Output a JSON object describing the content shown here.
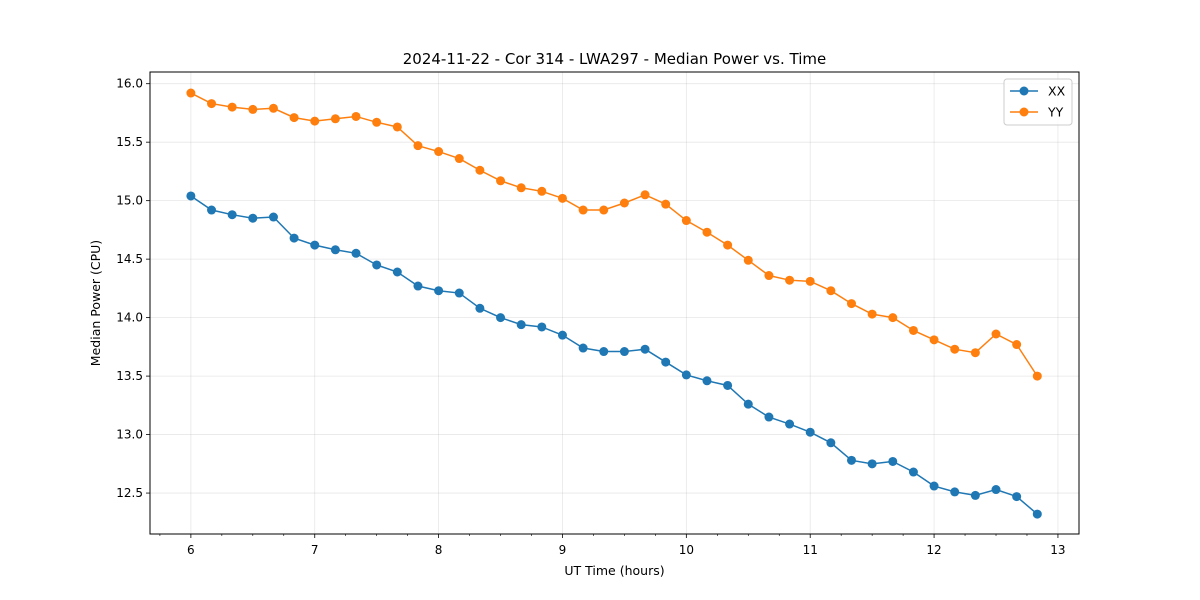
{
  "chart_data": {
    "type": "line",
    "title": "2024-11-22 - Cor 314 - LWA297 - Median Power vs. Time",
    "xlabel": "UT Time (hours)",
    "ylabel": "Median Power (CPU)",
    "xlim": [
      5.67,
      13.17
    ],
    "ylim": [
      12.15,
      16.1
    ],
    "xticks": [
      6,
      7,
      8,
      9,
      10,
      11,
      12,
      13
    ],
    "yticks": [
      12.5,
      13.0,
      13.5,
      14.0,
      14.5,
      15.0,
      15.5,
      16.0
    ],
    "xtick_labels": [
      "6",
      "7",
      "8",
      "9",
      "10",
      "11",
      "12",
      "13"
    ],
    "ytick_labels": [
      "12.5",
      "13.0",
      "13.5",
      "14.0",
      "14.5",
      "15.0",
      "15.5",
      "16.0"
    ],
    "grid": true,
    "legend_position": "top-right",
    "x": [
      6.0,
      6.1667,
      6.3333,
      6.5,
      6.6667,
      6.8333,
      7.0,
      7.1667,
      7.3333,
      7.5,
      7.6667,
      7.8333,
      8.0,
      8.1667,
      8.3333,
      8.5,
      8.6667,
      8.8333,
      9.0,
      9.1667,
      9.3333,
      9.5,
      9.6667,
      9.8333,
      10.0,
      10.1667,
      10.3333,
      10.5,
      10.6667,
      10.8333,
      11.0,
      11.1667,
      11.3333,
      11.5,
      11.6667,
      11.8333,
      12.0,
      12.1667,
      12.3333,
      12.5,
      12.6667,
      12.8333
    ],
    "series": [
      {
        "name": "XX",
        "color": "#1f77b4",
        "values": [
          15.04,
          14.92,
          14.88,
          14.85,
          14.86,
          14.68,
          14.62,
          14.58,
          14.55,
          14.45,
          14.39,
          14.27,
          14.23,
          14.21,
          14.08,
          14.0,
          13.94,
          13.92,
          13.85,
          13.74,
          13.71,
          13.71,
          13.73,
          13.62,
          13.51,
          13.46,
          13.42,
          13.26,
          13.15,
          13.09,
          13.02,
          12.93,
          12.78,
          12.75,
          12.77,
          12.68,
          12.56,
          12.51,
          12.48,
          12.53,
          12.47,
          12.32
        ]
      },
      {
        "name": "YY",
        "color": "#ff7f0e",
        "values": [
          15.92,
          15.83,
          15.8,
          15.78,
          15.79,
          15.71,
          15.68,
          15.7,
          15.72,
          15.67,
          15.63,
          15.47,
          15.42,
          15.36,
          15.26,
          15.17,
          15.11,
          15.08,
          15.02,
          14.92,
          14.92,
          14.98,
          15.05,
          14.97,
          14.83,
          14.73,
          14.62,
          14.49,
          14.36,
          14.32,
          14.31,
          14.23,
          14.12,
          14.03,
          14.0,
          13.89,
          13.81,
          13.73,
          13.7,
          13.86,
          13.77,
          13.5
        ]
      }
    ]
  }
}
